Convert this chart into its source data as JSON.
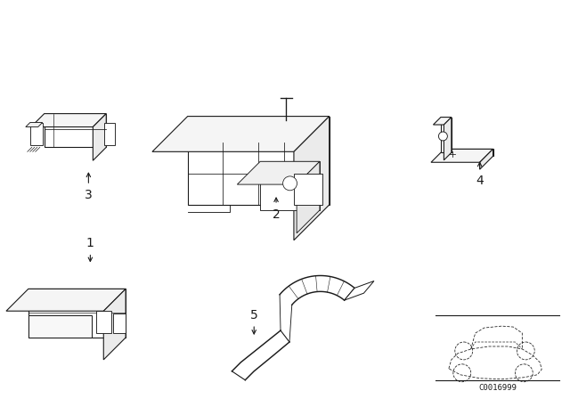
{
  "bg_color": "#ffffff",
  "fig_width": 6.4,
  "fig_height": 4.48,
  "dpi": 100,
  "catalog_code": "C0016999",
  "line_color": "#1a1a1a",
  "line_width": 0.8
}
